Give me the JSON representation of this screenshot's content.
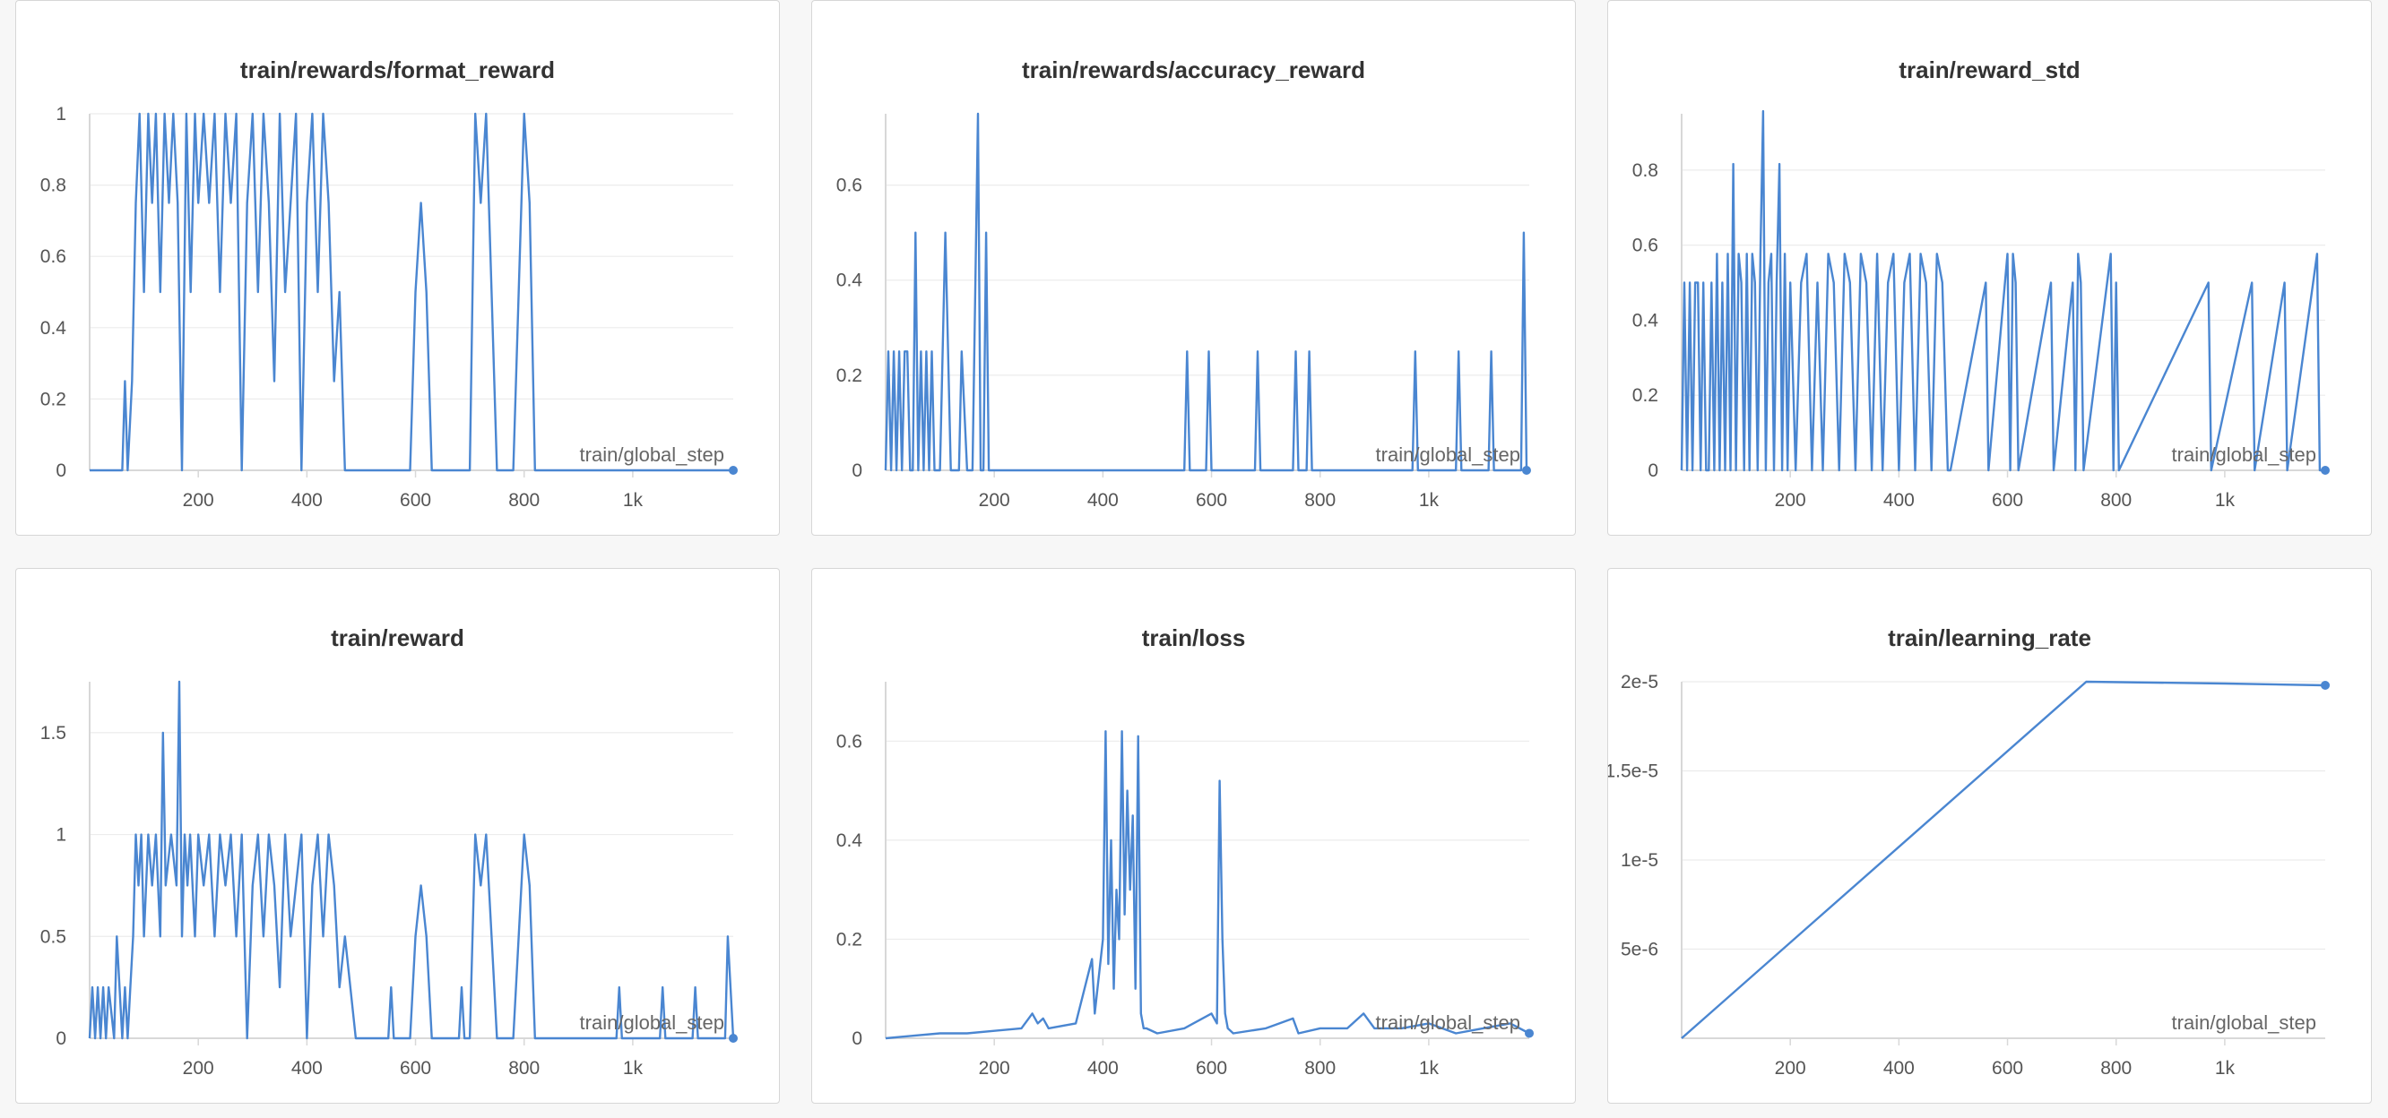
{
  "colors": {
    "line": "#4a86d1",
    "grid": "#ececec",
    "axis": "#d8d8d8",
    "text": "#555555",
    "title": "#333333"
  },
  "chart_data": [
    {
      "type": "line",
      "title": "train/rewards/format_reward",
      "xlabel": "train/global_step",
      "xlim": [
        0,
        1185
      ],
      "ylim": [
        0,
        1
      ],
      "x_ticks": [
        200,
        400,
        600,
        800,
        1000
      ],
      "x_tick_labels": [
        "200",
        "400",
        "600",
        "800",
        "1k"
      ],
      "y_ticks": [
        0,
        0.2,
        0.4,
        0.6,
        0.8,
        1
      ],
      "y_tick_labels": [
        "0",
        "0.2",
        "0.4",
        "0.6",
        "0.8",
        "1"
      ],
      "series": [
        {
          "x": [
            0,
            60,
            65,
            70,
            78,
            85,
            92,
            100,
            108,
            115,
            122,
            130,
            138,
            146,
            154,
            162,
            170,
            178,
            186,
            194,
            200,
            210,
            220,
            230,
            240,
            250,
            260,
            270,
            280,
            290,
            300,
            310,
            320,
            330,
            340,
            350,
            360,
            370,
            380,
            390,
            400,
            410,
            420,
            430,
            440,
            450,
            460,
            470,
            490,
            590,
            600,
            610,
            620,
            630,
            700,
            710,
            720,
            730,
            740,
            750,
            780,
            800,
            810,
            820,
            1185
          ],
          "y": [
            0,
            0,
            0.25,
            0,
            0.25,
            0.75,
            1,
            0.5,
            1,
            0.75,
            1,
            0.5,
            1,
            0.75,
            1,
            0.75,
            0,
            1,
            0.5,
            1,
            0.75,
            1,
            0.75,
            1,
            0.5,
            1,
            0.75,
            1,
            0,
            0.75,
            1,
            0.5,
            1,
            0.75,
            0.25,
            1,
            0.5,
            0.75,
            1,
            0,
            0.75,
            1,
            0.5,
            1,
            0.75,
            0.25,
            0.5,
            0,
            0,
            0,
            0.5,
            0.75,
            0.5,
            0,
            0,
            1,
            0.75,
            1,
            0.5,
            0,
            0,
            1,
            0.75,
            0,
            0
          ]
        }
      ]
    },
    {
      "type": "line",
      "title": "train/rewards/accuracy_reward",
      "xlabel": "train/global_step",
      "xlim": [
        0,
        1185
      ],
      "ylim": [
        0,
        0.75
      ],
      "x_ticks": [
        200,
        400,
        600,
        800,
        1000
      ],
      "x_tick_labels": [
        "200",
        "400",
        "600",
        "800",
        "1k"
      ],
      "y_ticks": [
        0,
        0.2,
        0.4,
        0.6
      ],
      "y_tick_labels": [
        "0",
        "0.2",
        "0.4",
        "0.6"
      ],
      "series": [
        {
          "x": [
            0,
            5,
            10,
            15,
            20,
            25,
            30,
            35,
            40,
            45,
            50,
            55,
            60,
            65,
            70,
            75,
            80,
            85,
            90,
            95,
            100,
            110,
            120,
            130,
            135,
            140,
            150,
            160,
            170,
            175,
            180,
            185,
            190,
            195,
            200,
            550,
            555,
            560,
            590,
            595,
            600,
            680,
            685,
            690,
            750,
            755,
            760,
            775,
            780,
            785,
            970,
            975,
            980,
            1050,
            1055,
            1060,
            1110,
            1115,
            1120,
            1170,
            1175,
            1180
          ],
          "y": [
            0,
            0.25,
            0,
            0.25,
            0,
            0.25,
            0,
            0.25,
            0.25,
            0,
            0,
            0.5,
            0,
            0.25,
            0,
            0.25,
            0,
            0.25,
            0,
            0,
            0,
            0.5,
            0,
            0,
            0,
            0.25,
            0,
            0,
            0.75,
            0,
            0,
            0.5,
            0,
            0,
            0,
            0,
            0.25,
            0,
            0,
            0.25,
            0,
            0,
            0.25,
            0,
            0,
            0.25,
            0,
            0,
            0.25,
            0,
            0,
            0.25,
            0,
            0,
            0.25,
            0,
            0,
            0.25,
            0,
            0,
            0.5,
            0
          ]
        }
      ]
    },
    {
      "type": "line",
      "title": "train/reward_std",
      "xlabel": "train/global_step",
      "xlim": [
        0,
        1185
      ],
      "ylim": [
        0,
        0.95
      ],
      "x_ticks": [
        200,
        400,
        600,
        800,
        1000
      ],
      "x_tick_labels": [
        "200",
        "400",
        "600",
        "800",
        "1k"
      ],
      "y_ticks": [
        0,
        0.2,
        0.4,
        0.6,
        0.8
      ],
      "y_tick_labels": [
        "0",
        "0.2",
        "0.4",
        "0.6",
        "0.8"
      ],
      "series": [
        {
          "x": [
            0,
            5,
            10,
            15,
            20,
            25,
            30,
            35,
            40,
            45,
            50,
            55,
            60,
            65,
            70,
            75,
            80,
            85,
            90,
            95,
            100,
            105,
            110,
            115,
            120,
            125,
            130,
            135,
            140,
            145,
            150,
            155,
            160,
            165,
            170,
            175,
            180,
            185,
            190,
            195,
            200,
            210,
            220,
            230,
            240,
            250,
            260,
            270,
            280,
            290,
            300,
            310,
            320,
            330,
            340,
            350,
            360,
            370,
            380,
            390,
            400,
            410,
            420,
            430,
            440,
            450,
            460,
            470,
            480,
            490,
            495,
            560,
            565,
            600,
            605,
            610,
            615,
            620,
            680,
            685,
            720,
            725,
            730,
            735,
            740,
            790,
            795,
            800,
            805,
            970,
            975,
            1050,
            1055,
            1110,
            1115,
            1170,
            1175,
            1185
          ],
          "y": [
            0,
            0.5,
            0,
            0.5,
            0,
            0.5,
            0.5,
            0,
            0.5,
            0,
            0,
            0.5,
            0,
            0.577,
            0,
            0.5,
            0,
            0.577,
            0,
            0.816,
            0,
            0.577,
            0.5,
            0,
            0.577,
            0,
            0.577,
            0.5,
            0,
            0.577,
            0.957,
            0,
            0.5,
            0.577,
            0,
            0.5,
            0.816,
            0,
            0.577,
            0,
            0.5,
            0,
            0.5,
            0.577,
            0,
            0.5,
            0,
            0.577,
            0.5,
            0,
            0.577,
            0.5,
            0,
            0.577,
            0.5,
            0,
            0.577,
            0,
            0.5,
            0.577,
            0,
            0.5,
            0.577,
            0,
            0.577,
            0.5,
            0,
            0.577,
            0.5,
            0,
            0,
            0.5,
            0,
            0.577,
            0,
            0.577,
            0.5,
            0,
            0.5,
            0,
            0.5,
            0,
            0.577,
            0.5,
            0,
            0.577,
            0,
            0.5,
            0,
            0.5,
            0,
            0.5,
            0,
            0.5,
            0,
            0.577,
            0,
            0
          ]
        }
      ]
    },
    {
      "type": "line",
      "title": "train/reward",
      "xlabel": "train/global_step",
      "xlim": [
        0,
        1185
      ],
      "ylim": [
        0,
        1.75
      ],
      "x_ticks": [
        200,
        400,
        600,
        800,
        1000
      ],
      "x_tick_labels": [
        "200",
        "400",
        "600",
        "800",
        "1k"
      ],
      "y_ticks": [
        0,
        0.5,
        1,
        1.5
      ],
      "y_tick_labels": [
        "0",
        "0.5",
        "1",
        "1.5"
      ],
      "series": [
        {
          "x": [
            0,
            5,
            10,
            15,
            20,
            25,
            30,
            35,
            45,
            50,
            60,
            65,
            70,
            75,
            80,
            85,
            90,
            95,
            100,
            108,
            115,
            122,
            130,
            135,
            140,
            150,
            160,
            165,
            170,
            175,
            180,
            185,
            194,
            200,
            210,
            220,
            230,
            240,
            250,
            260,
            270,
            280,
            290,
            300,
            310,
            320,
            330,
            340,
            350,
            360,
            370,
            380,
            390,
            400,
            410,
            420,
            430,
            440,
            450,
            460,
            470,
            490,
            550,
            555,
            560,
            590,
            600,
            610,
            620,
            630,
            680,
            685,
            690,
            700,
            710,
            720,
            730,
            740,
            750,
            780,
            800,
            810,
            820,
            970,
            975,
            980,
            1050,
            1055,
            1060,
            1110,
            1115,
            1120,
            1170,
            1175,
            1185
          ],
          "y": [
            0,
            0.25,
            0,
            0.25,
            0,
            0.25,
            0,
            0.25,
            0,
            0.5,
            0,
            0.25,
            0,
            0.25,
            0.5,
            1,
            0.75,
            1,
            0.5,
            1,
            0.75,
            1,
            0.5,
            1.5,
            0.75,
            1,
            0.75,
            1.75,
            0.5,
            1,
            0.75,
            1,
            0.5,
            1,
            0.75,
            1,
            0.5,
            1,
            0.75,
            1,
            0.5,
            1,
            0,
            0.75,
            1,
            0.5,
            1,
            0.75,
            0.25,
            1,
            0.5,
            0.75,
            1,
            0,
            0.75,
            1,
            0.5,
            1,
            0.75,
            0.25,
            0.5,
            0,
            0,
            0.25,
            0,
            0,
            0.5,
            0.75,
            0.5,
            0,
            0,
            0.25,
            0,
            0,
            1,
            0.75,
            1,
            0.5,
            0,
            0,
            1,
            0.75,
            0,
            0,
            0.25,
            0,
            0,
            0.25,
            0,
            0,
            0.25,
            0,
            0,
            0.5,
            0
          ]
        }
      ]
    },
    {
      "type": "line",
      "title": "train/loss",
      "xlabel": "train/global_step",
      "xlim": [
        0,
        1185
      ],
      "ylim": [
        0,
        0.72
      ],
      "x_ticks": [
        200,
        400,
        600,
        800,
        1000
      ],
      "x_tick_labels": [
        "200",
        "400",
        "600",
        "800",
        "1k"
      ],
      "y_ticks": [
        0,
        0.2,
        0.4,
        0.6
      ],
      "y_tick_labels": [
        "0",
        "0.2",
        "0.4",
        "0.6"
      ],
      "series": [
        {
          "x": [
            0,
            50,
            100,
            150,
            200,
            250,
            270,
            280,
            290,
            300,
            350,
            380,
            385,
            390,
            400,
            405,
            410,
            415,
            420,
            425,
            430,
            435,
            440,
            445,
            450,
            455,
            460,
            465,
            470,
            475,
            480,
            500,
            550,
            600,
            610,
            615,
            620,
            625,
            630,
            640,
            700,
            750,
            760,
            800,
            850,
            880,
            900,
            950,
            1000,
            1050,
            1100,
            1150,
            1185
          ],
          "y": [
            0,
            0.005,
            0.01,
            0.01,
            0.015,
            0.02,
            0.05,
            0.03,
            0.04,
            0.02,
            0.03,
            0.16,
            0.05,
            0.1,
            0.2,
            0.62,
            0.15,
            0.4,
            0.1,
            0.3,
            0.2,
            0.62,
            0.25,
            0.5,
            0.3,
            0.45,
            0.1,
            0.61,
            0.05,
            0.02,
            0.02,
            0.01,
            0.02,
            0.05,
            0.03,
            0.52,
            0.2,
            0.05,
            0.02,
            0.01,
            0.02,
            0.04,
            0.01,
            0.02,
            0.02,
            0.05,
            0.02,
            0.02,
            0.03,
            0.01,
            0.02,
            0.03,
            0.01
          ]
        }
      ]
    },
    {
      "type": "line",
      "title": "train/learning_rate",
      "xlabel": "train/global_step",
      "xlim": [
        0,
        1185
      ],
      "ylim": [
        0,
        2e-05
      ],
      "x_ticks": [
        200,
        400,
        600,
        800,
        1000
      ],
      "x_tick_labels": [
        "200",
        "400",
        "600",
        "800",
        "1k"
      ],
      "y_ticks": [
        5e-06,
        1e-05,
        1.5e-05,
        2e-05
      ],
      "y_tick_labels": [
        "5e-6",
        "1e-5",
        "1.5e-5",
        "2e-5"
      ],
      "series": [
        {
          "x": [
            0,
            745,
            1000,
            1185
          ],
          "y": [
            0,
            2e-05,
            1.99e-05,
            1.98e-05
          ]
        }
      ]
    }
  ]
}
